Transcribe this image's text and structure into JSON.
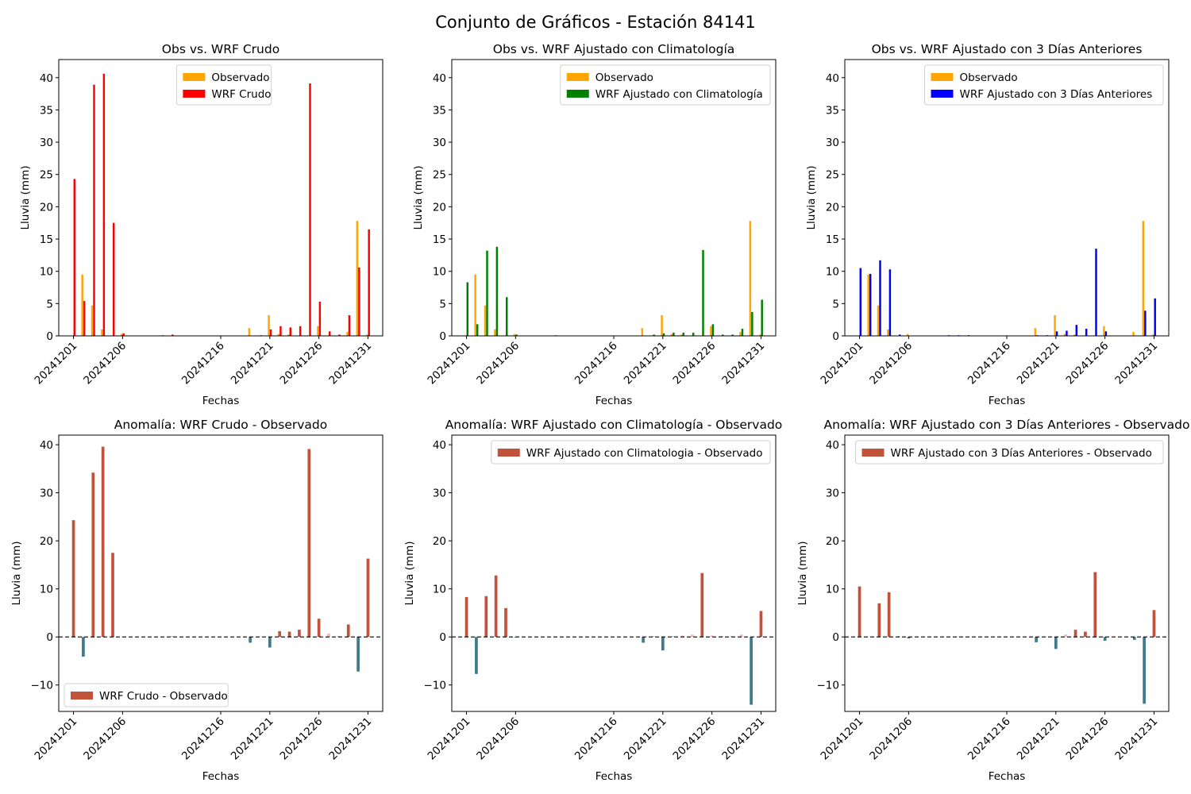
{
  "figure_title": "Conjunto de Gráficos - Estación 84141",
  "colors": {
    "observado": "#FFA500",
    "wrf_crudo": "#FF0000",
    "wrf_clim": "#008000",
    "wrf_3dias": "#0000FF",
    "anom_pos": "#C1533C",
    "anom_neg": "#3E7A8A",
    "anom_small_pos": "#F4B6B6",
    "zero_line": "#000000"
  },
  "chart_data": [
    {
      "type": "bar",
      "title": "Obs vs. WRF Crudo",
      "xlabel": "Fechas",
      "ylabel": "Lluvia (mm)",
      "ylim": [
        0,
        42.8
      ],
      "yticks": [
        0,
        5,
        10,
        15,
        20,
        25,
        30,
        35,
        40
      ],
      "xticks": [
        "20241201",
        "20241206",
        "20241216",
        "20241221",
        "20241226",
        "20241231"
      ],
      "categories": [
        "20241201",
        "20241202",
        "20241203",
        "20241204",
        "20241205",
        "20241206",
        "20241207",
        "20241208",
        "20241209",
        "20241210",
        "20241211",
        "20241212",
        "20241213",
        "20241214",
        "20241215",
        "20241216",
        "20241217",
        "20241218",
        "20241219",
        "20241220",
        "20241221",
        "20241222",
        "20241223",
        "20241224",
        "20241225",
        "20241226",
        "20241227",
        "20241228",
        "20241229",
        "20241230",
        "20241231"
      ],
      "legend": "top-center",
      "series": [
        {
          "name": "Observado",
          "color_key": "observado",
          "values": [
            0,
            9.5,
            4.7,
            1.0,
            0,
            0.3,
            0,
            0,
            0,
            0,
            0,
            0,
            0,
            0,
            0,
            0,
            0,
            0,
            1.2,
            0,
            3.2,
            0.3,
            0.2,
            0,
            0,
            1.5,
            0,
            0,
            0.6,
            17.8,
            0.2
          ]
        },
        {
          "name": "WRF Crudo",
          "color_key": "wrf_crudo",
          "values": [
            24.3,
            5.4,
            38.9,
            40.6,
            17.5,
            0.4,
            0,
            0,
            0,
            0.1,
            0.2,
            0,
            0,
            0,
            0,
            0,
            0,
            0,
            0,
            0.1,
            1.0,
            1.5,
            1.3,
            1.5,
            39.1,
            5.3,
            0.7,
            0.2,
            3.2,
            10.6,
            16.5
          ]
        }
      ]
    },
    {
      "type": "bar",
      "title": "Obs vs. WRF Ajustado con Climatología",
      "xlabel": "Fechas",
      "ylabel": "Lluvia (mm)",
      "ylim": [
        0,
        42.8
      ],
      "yticks": [
        0,
        5,
        10,
        15,
        20,
        25,
        30,
        35,
        40
      ],
      "xticks": [
        "20241201",
        "20241206",
        "20241216",
        "20241221",
        "20241226",
        "20241231"
      ],
      "categories": [
        "20241201",
        "20241202",
        "20241203",
        "20241204",
        "20241205",
        "20241206",
        "20241207",
        "20241208",
        "20241209",
        "20241210",
        "20241211",
        "20241212",
        "20241213",
        "20241214",
        "20241215",
        "20241216",
        "20241217",
        "20241218",
        "20241219",
        "20241220",
        "20241221",
        "20241222",
        "20241223",
        "20241224",
        "20241225",
        "20241226",
        "20241227",
        "20241228",
        "20241229",
        "20241230",
        "20241231"
      ],
      "legend": "top-right",
      "series": [
        {
          "name": "Observado",
          "color_key": "observado",
          "values": [
            0,
            9.5,
            4.7,
            1.0,
            0,
            0.3,
            0,
            0,
            0,
            0,
            0,
            0,
            0,
            0,
            0,
            0,
            0,
            0,
            1.2,
            0,
            3.2,
            0.3,
            0.2,
            0,
            0,
            1.5,
            0,
            0,
            0.6,
            17.8,
            0.2
          ]
        },
        {
          "name": "WRF Ajustado con Climatología",
          "color_key": "wrf_clim",
          "values": [
            8.3,
            1.8,
            13.2,
            13.8,
            6.0,
            0.2,
            0,
            0,
            0,
            0.1,
            0,
            0,
            0,
            0,
            0,
            0,
            0,
            0,
            0,
            0.2,
            0.4,
            0.5,
            0.5,
            0.5,
            13.3,
            1.8,
            0.2,
            0.2,
            1.1,
            3.7,
            5.6
          ]
        }
      ]
    },
    {
      "type": "bar",
      "title": "Obs vs. WRF Ajustado con 3 Días Anteriores",
      "xlabel": "Fechas",
      "ylabel": "Lluvia (mm)",
      "ylim": [
        0,
        42.8
      ],
      "yticks": [
        0,
        5,
        10,
        15,
        20,
        25,
        30,
        35,
        40
      ],
      "xticks": [
        "20241201",
        "20241206",
        "20241216",
        "20241221",
        "20241226",
        "20241231"
      ],
      "categories": [
        "20241201",
        "20241202",
        "20241203",
        "20241204",
        "20241205",
        "20241206",
        "20241207",
        "20241208",
        "20241209",
        "20241210",
        "20241211",
        "20241212",
        "20241213",
        "20241214",
        "20241215",
        "20241216",
        "20241217",
        "20241218",
        "20241219",
        "20241220",
        "20241221",
        "20241222",
        "20241223",
        "20241224",
        "20241225",
        "20241226",
        "20241227",
        "20241228",
        "20241229",
        "20241230",
        "20241231"
      ],
      "legend": "top-right",
      "series": [
        {
          "name": "Observado",
          "color_key": "observado",
          "values": [
            0,
            9.5,
            4.7,
            1.0,
            0,
            0.3,
            0,
            0,
            0,
            0,
            0,
            0,
            0,
            0,
            0,
            0,
            0,
            0,
            1.2,
            0,
            3.2,
            0.3,
            0.2,
            0,
            0,
            1.5,
            0,
            0,
            0.6,
            17.8,
            0.2
          ]
        },
        {
          "name": "WRF Ajustado con 3 Días Anteriores",
          "color_key": "wrf_3dias",
          "values": [
            10.5,
            9.6,
            11.7,
            10.3,
            0.2,
            0,
            0,
            0,
            0,
            0.1,
            0.1,
            0.1,
            0,
            0,
            0,
            0,
            0,
            0,
            0.1,
            0.1,
            0.7,
            0.8,
            1.7,
            1.1,
            13.5,
            0.7,
            0,
            0,
            0,
            3.9,
            5.8
          ]
        }
      ]
    },
    {
      "type": "bar",
      "title": "Anomalía: WRF Crudo - Observado",
      "xlabel": "Fechas",
      "ylabel": "Lluvia (mm)",
      "ylim": [
        -15.5,
        42
      ],
      "yticks": [
        -10,
        0,
        10,
        20,
        30,
        40
      ],
      "xticks": [
        "20241201",
        "20241206",
        "20241216",
        "20241221",
        "20241226",
        "20241231"
      ],
      "categories": [
        "20241201",
        "20241202",
        "20241203",
        "20241204",
        "20241205",
        "20241206",
        "20241207",
        "20241208",
        "20241209",
        "20241210",
        "20241211",
        "20241212",
        "20241213",
        "20241214",
        "20241215",
        "20241216",
        "20241217",
        "20241218",
        "20241219",
        "20241220",
        "20241221",
        "20241222",
        "20241223",
        "20241224",
        "20241225",
        "20241226",
        "20241227",
        "20241228",
        "20241229",
        "20241230",
        "20241231"
      ],
      "legend": "bottom-left",
      "series": [
        {
          "name": "WRF Crudo - Observado",
          "values": [
            24.3,
            -4.1,
            34.2,
            39.6,
            17.5,
            0.1,
            0,
            0,
            0,
            0.1,
            0.2,
            0,
            0,
            0,
            0,
            0,
            0,
            0,
            -1.2,
            0.1,
            -2.2,
            1.2,
            1.1,
            1.5,
            39.1,
            3.8,
            0.7,
            0.2,
            2.6,
            -7.2,
            16.3
          ]
        }
      ]
    },
    {
      "type": "bar",
      "title": "Anomalía: WRF Ajustado con Climatología - Observado",
      "xlabel": "Fechas",
      "ylabel": "Lluvia (mm)",
      "ylim": [
        -15.5,
        42
      ],
      "yticks": [
        -10,
        0,
        10,
        20,
        30,
        40
      ],
      "xticks": [
        "20241201",
        "20241206",
        "20241216",
        "20241221",
        "20241226",
        "20241231"
      ],
      "categories": [
        "20241201",
        "20241202",
        "20241203",
        "20241204",
        "20241205",
        "20241206",
        "20241207",
        "20241208",
        "20241209",
        "20241210",
        "20241211",
        "20241212",
        "20241213",
        "20241214",
        "20241215",
        "20241216",
        "20241217",
        "20241218",
        "20241219",
        "20241220",
        "20241221",
        "20241222",
        "20241223",
        "20241224",
        "20241225",
        "20241226",
        "20241227",
        "20241228",
        "20241229",
        "20241230",
        "20241231"
      ],
      "legend": "top-right",
      "series": [
        {
          "name": "WRF Ajustado con Climatologia - Observado",
          "values": [
            8.3,
            -7.7,
            8.5,
            12.8,
            6.0,
            -0.1,
            0,
            0,
            0,
            0.1,
            0,
            0,
            0,
            0,
            0,
            0,
            0,
            0,
            -1.2,
            0.2,
            -2.8,
            0.2,
            0.3,
            0.5,
            13.3,
            0.3,
            0.2,
            0.2,
            0.5,
            -14.1,
            5.4
          ]
        }
      ]
    },
    {
      "type": "bar",
      "title": "Anomalía: WRF Ajustado con 3 Días Anteriores - Observado",
      "xlabel": "Fechas",
      "ylabel": "Lluvia (mm)",
      "ylim": [
        -15.5,
        42
      ],
      "yticks": [
        -10,
        0,
        10,
        20,
        30,
        40
      ],
      "xticks": [
        "20241201",
        "20241206",
        "20241216",
        "20241221",
        "20241226",
        "20241231"
      ],
      "categories": [
        "20241201",
        "20241202",
        "20241203",
        "20241204",
        "20241205",
        "20241206",
        "20241207",
        "20241208",
        "20241209",
        "20241210",
        "20241211",
        "20241212",
        "20241213",
        "20241214",
        "20241215",
        "20241216",
        "20241217",
        "20241218",
        "20241219",
        "20241220",
        "20241221",
        "20241222",
        "20241223",
        "20241224",
        "20241225",
        "20241226",
        "20241227",
        "20241228",
        "20241229",
        "20241230",
        "20241231"
      ],
      "legend": "top-right",
      "series": [
        {
          "name": "WRF Ajustado con 3 Días Anteriores - Observado",
          "values": [
            10.5,
            0.1,
            7.0,
            9.3,
            0.2,
            -0.3,
            0,
            0,
            0,
            0.1,
            0.1,
            0.1,
            0,
            0,
            0,
            0,
            0,
            0,
            -1.1,
            0.1,
            -2.5,
            0.5,
            1.5,
            1.1,
            13.5,
            -0.8,
            0,
            0,
            -0.6,
            -13.9,
            5.6
          ]
        }
      ]
    }
  ]
}
